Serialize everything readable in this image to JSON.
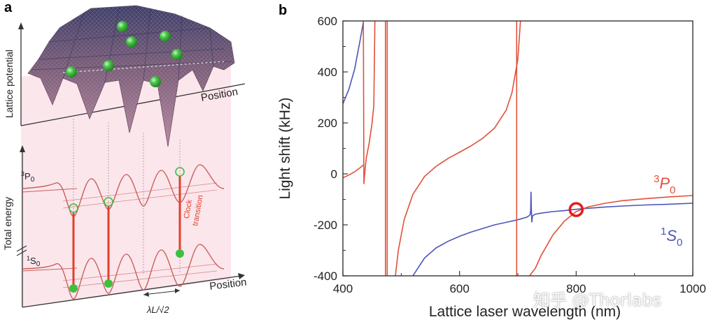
{
  "panel_a": {
    "letter": "a",
    "top_ylabel": "Lattice potential",
    "top_xlabel": "Position",
    "bottom_ylabel": "Total energy",
    "bottom_xlabel": "Position",
    "level_upper": "3P0",
    "level_upper_sup": "3",
    "level_upper_main": "P",
    "level_upper_sub": "0",
    "level_lower_sup": "1",
    "level_lower_main": "S",
    "level_lower_sub": "0",
    "clock_label_1": "Clock",
    "clock_label_2": "transition",
    "spacing_label": "λL/√2",
    "colors": {
      "atom": "#3fbf3f",
      "transition": "#e0402a",
      "pink_bg": "#fbe4ea",
      "surface": "#7a5a6e"
    }
  },
  "panel_b": {
    "letter": "b",
    "watermark": "知乎 @Thorlabs"
  },
  "chart_data": {
    "type": "line",
    "title": "",
    "xlabel": "Lattice laser wavelength (nm)",
    "ylabel": "Light shift (kHz)",
    "xlim": [
      400,
      1000
    ],
    "ylim": [
      -400,
      600
    ],
    "xticks": [
      400,
      600,
      800,
      1000
    ],
    "xtick_labels": [
      "400",
      "600",
      "800",
      "1000"
    ],
    "yticks": [
      -400,
      -200,
      0,
      200,
      400,
      600
    ],
    "ytick_labels": [
      "-400",
      "-200",
      "0",
      "200",
      "400",
      "600"
    ],
    "series": [
      {
        "name": "1S0",
        "label_main": "S",
        "label_sup": "1",
        "label_sub": "0",
        "color": "#4a55b8",
        "segments": [
          [
            [
              400,
              275
            ],
            [
              410,
              330
            ],
            [
              420,
              410
            ],
            [
              430,
              530
            ],
            [
              437,
              620
            ]
          ],
          [
            [
              520,
              -400
            ],
            [
              540,
              -330
            ],
            [
              560,
              -290
            ],
            [
              580,
              -265
            ],
            [
              600,
              -245
            ],
            [
              620,
              -228
            ],
            [
              640,
              -214
            ],
            [
              660,
              -200
            ],
            [
              680,
              -190
            ],
            [
              700,
              -180
            ],
            [
              715,
              -170
            ],
            [
              720,
              -163
            ]
          ],
          [
            [
              720,
              -163
            ],
            [
              721,
              -160
            ],
            [
              722,
              -145
            ],
            [
              722.5,
              -70
            ],
            [
              723,
              -130
            ],
            [
              724,
              -190
            ],
            [
              725,
              -165
            ],
            [
              730,
              -158
            ],
            [
              740,
              -154
            ],
            [
              760,
              -148
            ],
            [
              780,
              -144
            ],
            [
              800,
              -139
            ],
            [
              820,
              -135
            ],
            [
              850,
              -130
            ],
            [
              880,
              -126
            ],
            [
              920,
              -122
            ],
            [
              960,
              -119
            ],
            [
              1000,
              -115
            ]
          ]
        ]
      },
      {
        "name": "3P0",
        "label_main": "P",
        "label_sup": "3",
        "label_sub": "0",
        "color": "#e0503a",
        "segments": [
          [
            [
              400,
              -15
            ],
            [
              410,
              -5
            ],
            [
              420,
              8
            ],
            [
              430,
              25
            ],
            [
              435,
              35
            ]
          ],
          [
            [
              435,
              620
            ],
            [
              436,
              -40
            ],
            [
              437,
              -10
            ]
          ],
          [
            [
              437,
              -10
            ],
            [
              440,
              60
            ],
            [
              445,
              120
            ],
            [
              450,
              200
            ],
            [
              453,
              270
            ],
            [
              455,
              620
            ]
          ],
          [
            [
              473,
              -400
            ],
            [
              473,
              620
            ]
          ],
          [
            [
              476,
              -400
            ],
            [
              476,
              620
            ]
          ],
          [
            [
              490,
              -400
            ],
            [
              495,
              -300
            ],
            [
              505,
              -180
            ],
            [
              520,
              -80
            ],
            [
              540,
              -10
            ],
            [
              560,
              30
            ],
            [
              580,
              60
            ],
            [
              600,
              85
            ],
            [
              620,
              110
            ],
            [
              640,
              140
            ],
            [
              660,
              180
            ],
            [
              680,
              250
            ],
            [
              690,
              320
            ],
            [
              700,
              450
            ],
            [
              705,
              620
            ]
          ],
          [
            [
              698,
              -400
            ],
            [
              698,
              620
            ]
          ],
          [
            [
              720,
              -400
            ],
            [
              730,
              -370
            ],
            [
              740,
              -320
            ],
            [
              760,
              -240
            ],
            [
              780,
              -185
            ],
            [
              800,
              -148
            ],
            [
              820,
              -130
            ],
            [
              850,
              -115
            ],
            [
              880,
              -105
            ],
            [
              920,
              -97
            ],
            [
              960,
              -90
            ],
            [
              1000,
              -85
            ]
          ]
        ]
      }
    ],
    "annotations": [
      {
        "type": "circle-marker",
        "x": 800,
        "y": -140,
        "color": "#e31b1b",
        "description": "magic wavelength"
      }
    ]
  }
}
